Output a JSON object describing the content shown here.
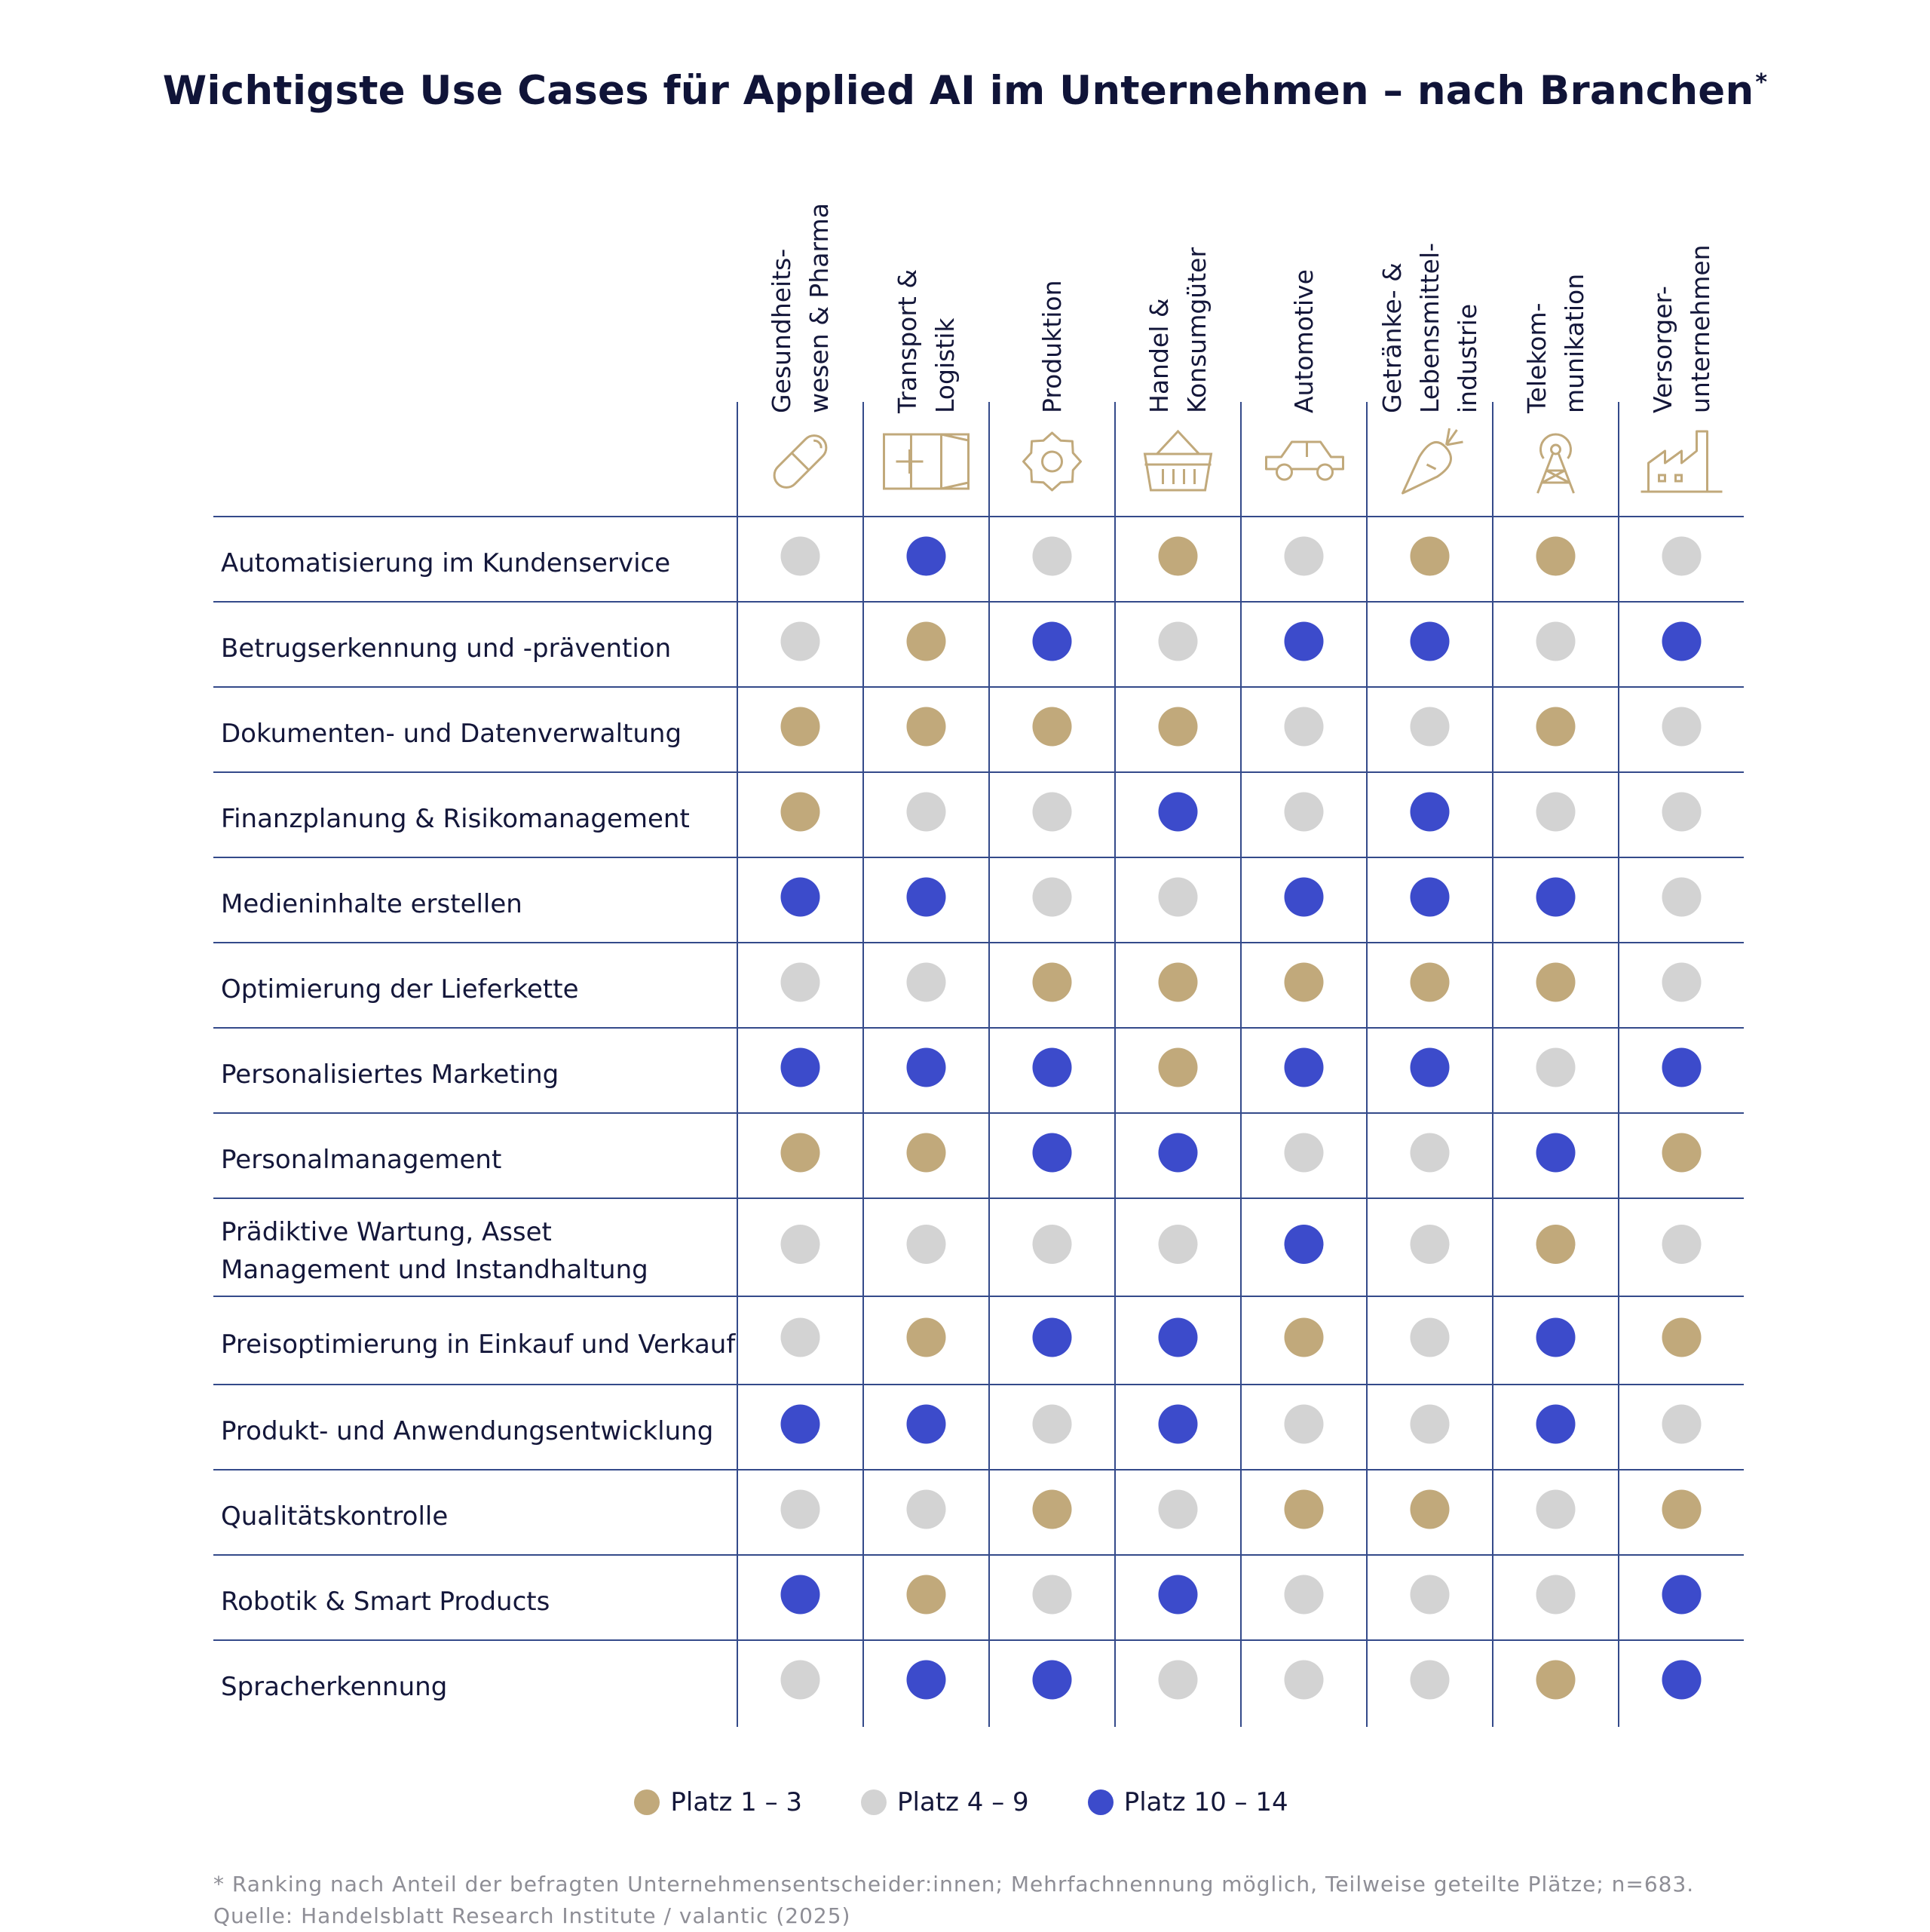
{
  "title": "Wichtigste Use Cases für Applied AI im Unternehmen – nach Branchen",
  "title_mark": "*",
  "colors": {
    "platz_1_3": "#c1a97b",
    "platz_4_9": "#d3d3d3",
    "platz_10_14": "#3c4bcb",
    "line": "#344a8a"
  },
  "chart_data": {
    "type": "table",
    "title": "Wichtigste Use Cases für Applied AI im Unternehmen – nach Branchen*",
    "columns": [
      {
        "lines": [
          "Gesundheits-",
          "wesen & Pharma"
        ],
        "icon": "pill-icon"
      },
      {
        "lines": [
          "Transport &",
          "Logistik"
        ],
        "icon": "container-icon"
      },
      {
        "lines": [
          "Produktion"
        ],
        "icon": "gear-icon"
      },
      {
        "lines": [
          "Handel &",
          "Konsumgüter"
        ],
        "icon": "basket-icon"
      },
      {
        "lines": [
          "Automotive"
        ],
        "icon": "car-icon"
      },
      {
        "lines": [
          "Getränke- &",
          "Lebensmittel-",
          "industrie"
        ],
        "icon": "carrot-icon"
      },
      {
        "lines": [
          "Telekom-",
          "munikation"
        ],
        "icon": "antenna-icon"
      },
      {
        "lines": [
          "Versorger-",
          "unternehmen"
        ],
        "icon": "factory-icon"
      }
    ],
    "rows": [
      {
        "lines": [
          "Automatisierung im Kundenservice"
        ],
        "values": [
          "4–9",
          "10–14",
          "4–9",
          "1–3",
          "4–9",
          "1–3",
          "1–3",
          "4–9"
        ]
      },
      {
        "lines": [
          "Betrugserkennung und -prävention"
        ],
        "values": [
          "4–9",
          "1–3",
          "10–14",
          "4–9",
          "10–14",
          "10–14",
          "4–9",
          "10–14"
        ]
      },
      {
        "lines": [
          "Dokumenten- und Datenverwaltung"
        ],
        "values": [
          "1–3",
          "1–3",
          "1–3",
          "1–3",
          "4–9",
          "4–9",
          "1–3",
          "4–9"
        ]
      },
      {
        "lines": [
          "Finanzplanung & Risikomanagement"
        ],
        "values": [
          "1–3",
          "4–9",
          "4–9",
          "10–14",
          "4–9",
          "10–14",
          "4–9",
          "4–9"
        ]
      },
      {
        "lines": [
          "Medieninhalte erstellen"
        ],
        "values": [
          "10–14",
          "10–14",
          "4–9",
          "4–9",
          "10–14",
          "10–14",
          "10–14",
          "4–9"
        ]
      },
      {
        "lines": [
          "Optimierung der Lieferkette"
        ],
        "values": [
          "4–9",
          "4–9",
          "1–3",
          "1–3",
          "1–3",
          "1–3",
          "1–3",
          "4–9"
        ]
      },
      {
        "lines": [
          "Personalisiertes Marketing"
        ],
        "values": [
          "10–14",
          "10–14",
          "10–14",
          "1–3",
          "10–14",
          "10–14",
          "4–9",
          "10–14"
        ]
      },
      {
        "lines": [
          "Personalmanagement"
        ],
        "values": [
          "1–3",
          "1–3",
          "10–14",
          "10–14",
          "4–9",
          "4–9",
          "10–14",
          "1–3"
        ]
      },
      {
        "lines": [
          "Prädiktive Wartung, Asset",
          "Management und Instandhaltung"
        ],
        "values": [
          "4–9",
          "4–9",
          "4–9",
          "4–9",
          "10–14",
          "4–9",
          "1–3",
          "4–9"
        ]
      },
      {
        "lines": [
          "Preisoptimierung in Einkauf und Verkauf"
        ],
        "values": [
          "4–9",
          "1–3",
          "10–14",
          "10–14",
          "1–3",
          "4–9",
          "10–14",
          "1–3"
        ]
      },
      {
        "lines": [
          "Produkt- und Anwendungsentwicklung"
        ],
        "values": [
          "10–14",
          "10–14",
          "4–9",
          "10–14",
          "4–9",
          "4–9",
          "10–14",
          "4–9"
        ]
      },
      {
        "lines": [
          "Qualitätskontrolle"
        ],
        "values": [
          "4–9",
          "4–9",
          "1–3",
          "4–9",
          "1–3",
          "1–3",
          "4–9",
          "1–3"
        ]
      },
      {
        "lines": [
          "Robotik & Smart Products"
        ],
        "values": [
          "10–14",
          "1–3",
          "4–9",
          "10–14",
          "4–9",
          "4–9",
          "4–9",
          "10–14"
        ]
      },
      {
        "lines": [
          "Spracherkennung"
        ],
        "values": [
          "4–9",
          "10–14",
          "10–14",
          "4–9",
          "4–9",
          "4–9",
          "1–3",
          "10–14"
        ]
      }
    ],
    "legend": [
      {
        "key": "1–3",
        "label": "Platz 1 – 3"
      },
      {
        "key": "4–9",
        "label": "Platz 4 – 9"
      },
      {
        "key": "10–14",
        "label": "Platz 10 – 14"
      }
    ]
  },
  "footnote": {
    "line1": "* Ranking nach Anteil der befragten Unternehmensentscheider:innen; Mehrfachnennung möglich, Teilweise geteilte Plätze; n=683.",
    "line2": "Quelle: Handelsblatt Research Institute / valantic (2025)"
  }
}
